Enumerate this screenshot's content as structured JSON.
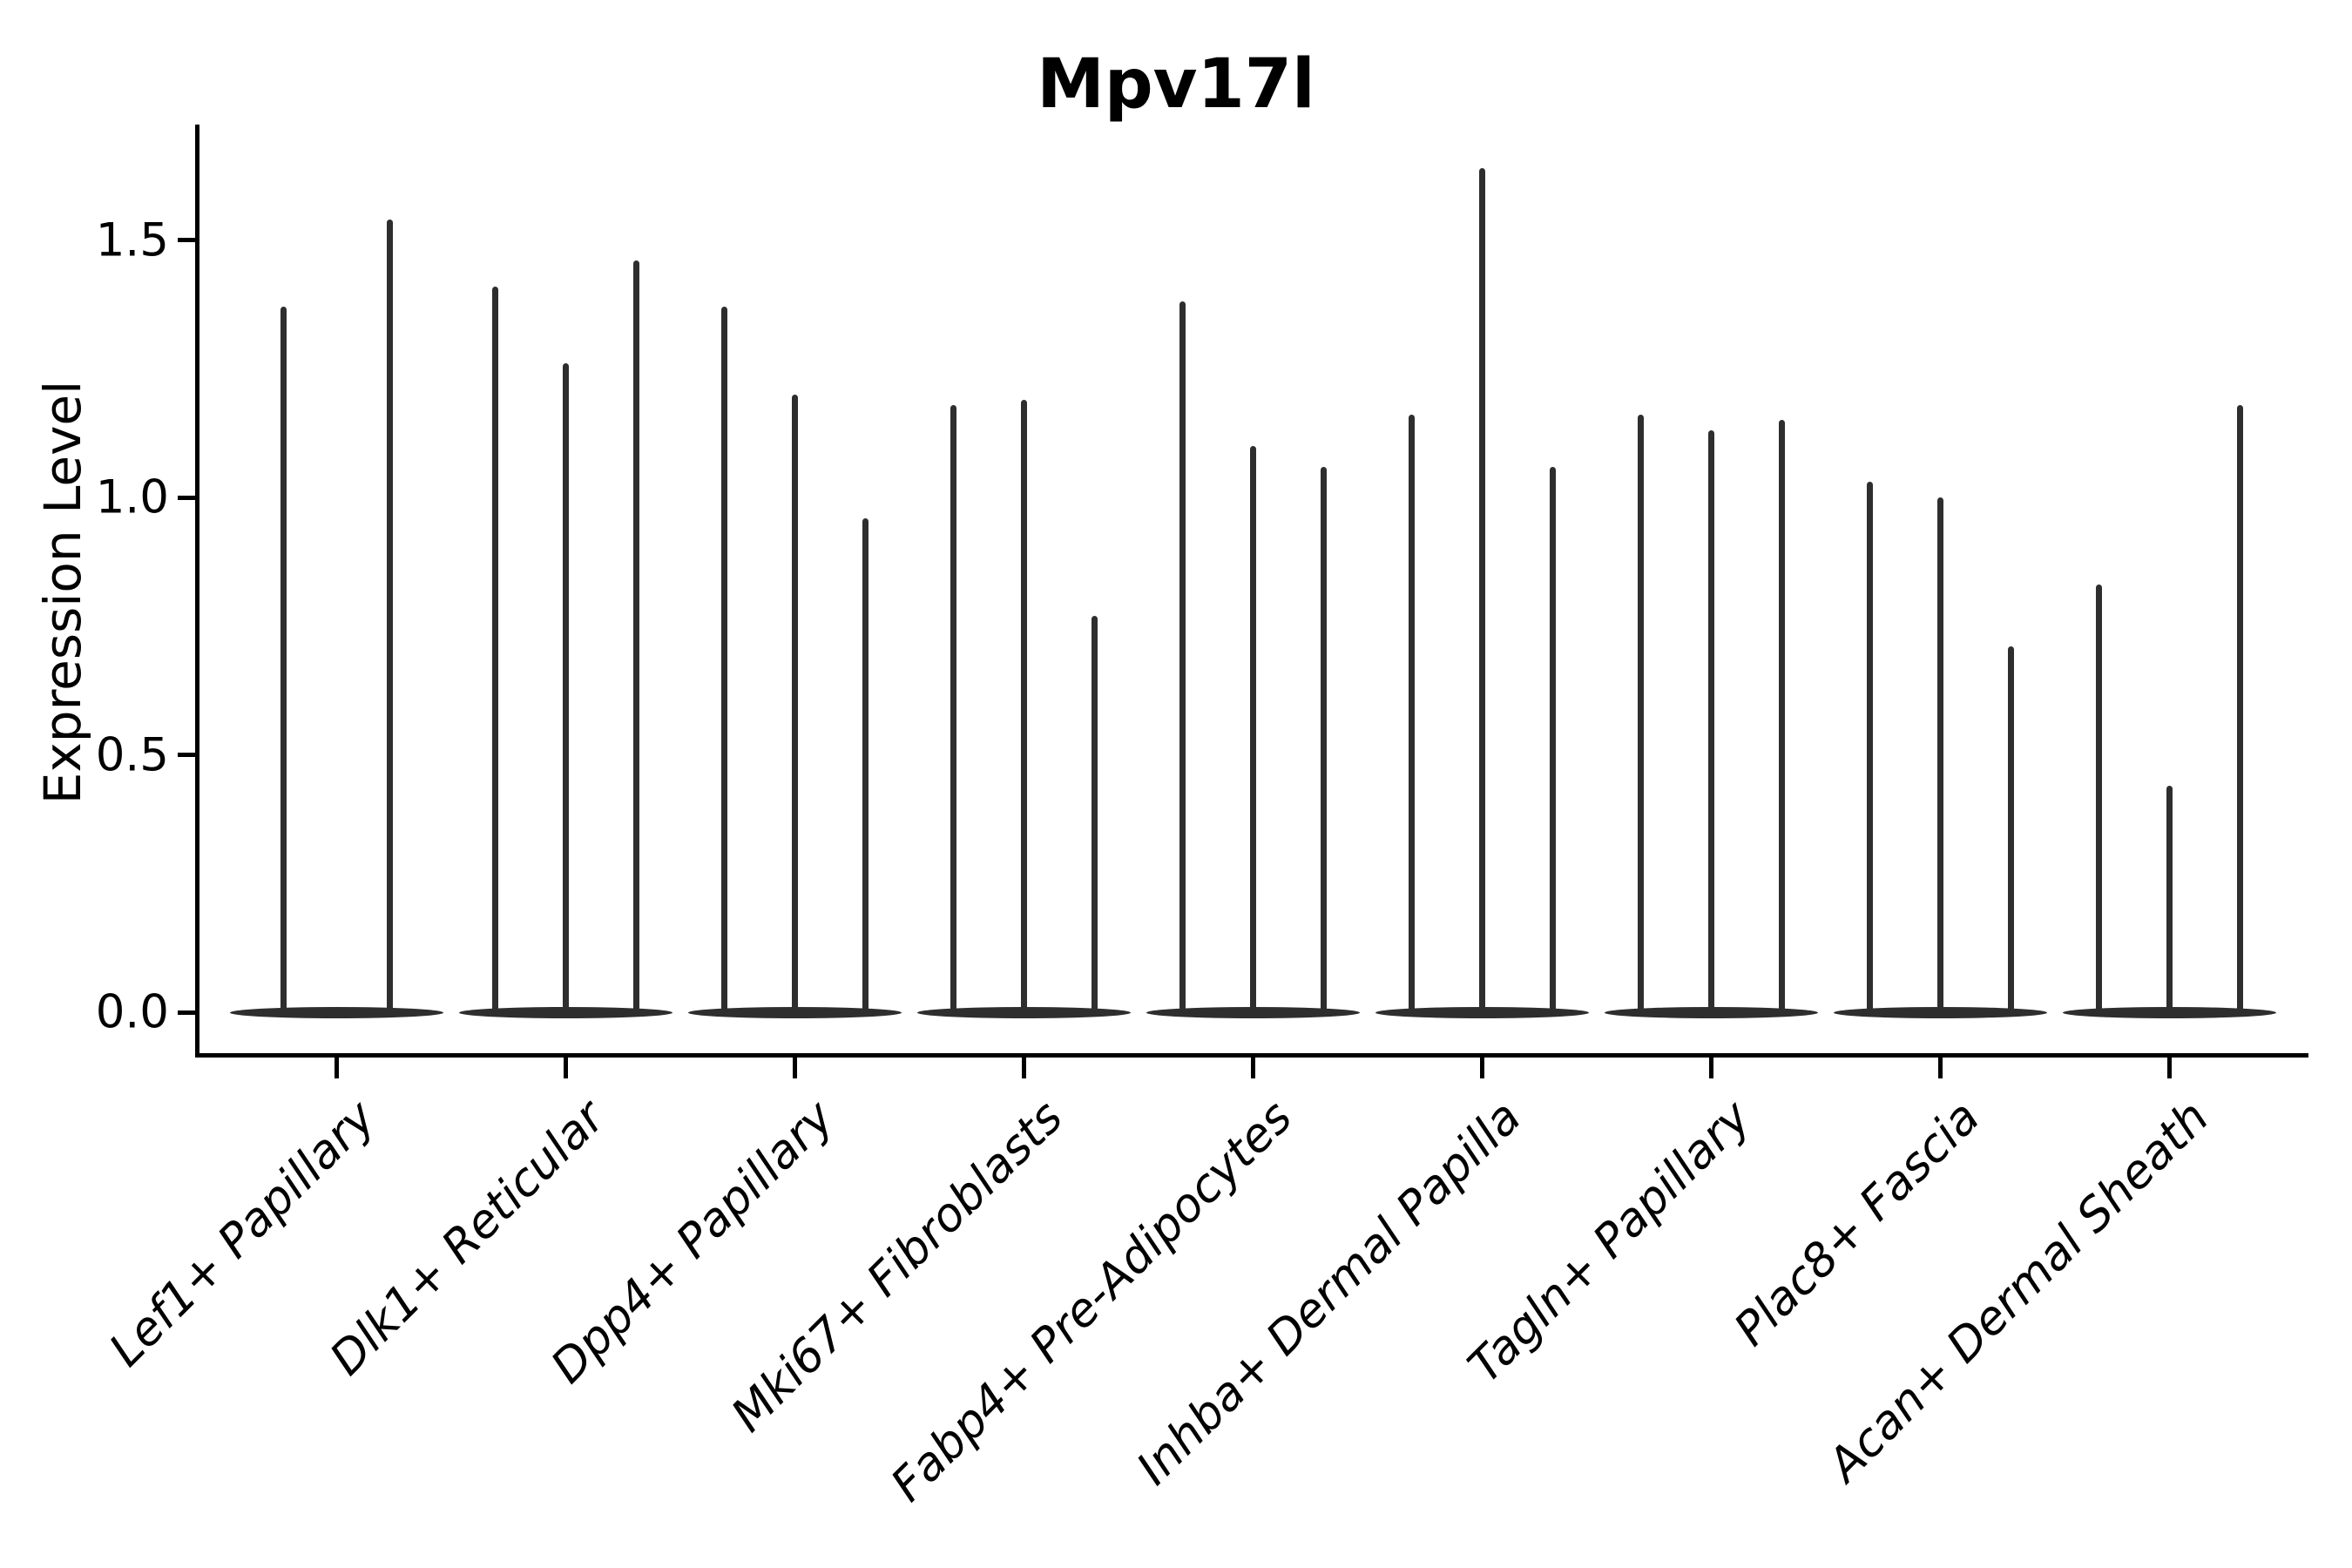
{
  "title": "Mpv17l",
  "y_axis": {
    "label": "Expression Level",
    "tick_labels": [
      "0.0",
      "0.5",
      "1.0",
      "1.5"
    ],
    "tick_values": [
      0.0,
      0.5,
      1.0,
      1.5
    ]
  },
  "colors": {
    "violin": "#2e2e2e",
    "axis": "#000000",
    "text": "#000000",
    "background": "#ffffff"
  },
  "chart_data": {
    "type": "violin",
    "title": "Mpv17l",
    "xlabel": "",
    "ylabel": "Expression Level",
    "ylim": [
      0,
      1.72
    ],
    "yticks": [
      0.0,
      0.5,
      1.0,
      1.5
    ],
    "grid": false,
    "legend_position": "none",
    "style_note": "zero-inflated expression violins: wide flattened body at 0 with needle-thin tails rising to the maximum expression value; 2-3 violins (splits) per category",
    "categories": [
      "Lef1+ Papillary",
      "Dlk1+ Reticular",
      "Dpp4+ Papillary",
      "Mki67+ Fibroblasts",
      "Fabp4+ Pre-Adipocytes",
      "Inhba+ Dermal Papilla",
      "Tagln+ Papillary",
      "Plac8+ Fascia",
      "Acan+ Dermal Sheath"
    ],
    "groups": [
      {
        "category": "Lef1+ Papillary",
        "violin_max_values": [
          1.37,
          1.54
        ]
      },
      {
        "category": "Dlk1+ Reticular",
        "violin_max_values": [
          1.41,
          1.26,
          1.46
        ]
      },
      {
        "category": "Dpp4+ Papillary",
        "violin_max_values": [
          1.37,
          1.2,
          0.96
        ]
      },
      {
        "category": "Mki67+ Fibroblasts",
        "violin_max_values": [
          1.18,
          1.19,
          0.77
        ]
      },
      {
        "category": "Fabp4+ Pre-Adipocytes",
        "violin_max_values": [
          1.38,
          1.1,
          1.06
        ]
      },
      {
        "category": "Inhba+ Dermal Papilla",
        "violin_max_values": [
          1.16,
          1.64,
          1.06
        ]
      },
      {
        "category": "Tagln+ Papillary",
        "violin_max_values": [
          1.16,
          1.13,
          1.15
        ]
      },
      {
        "category": "Plac8+ Fascia",
        "violin_max_values": [
          1.03,
          1.0,
          0.71
        ]
      },
      {
        "category": "Acan+ Dermal Sheath",
        "violin_max_values": [
          0.83,
          0.44,
          1.18
        ]
      }
    ]
  }
}
